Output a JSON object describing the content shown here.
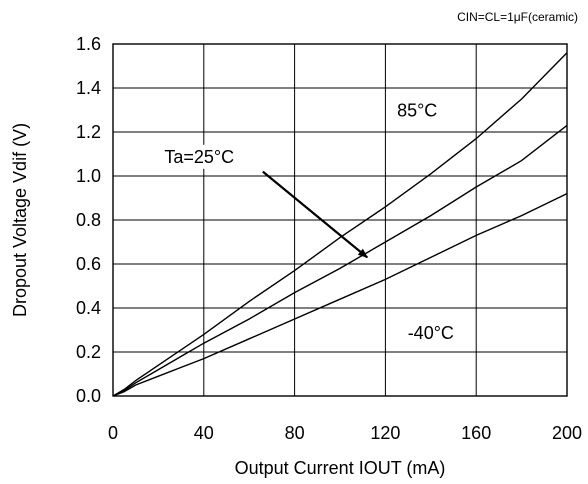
{
  "chart_data": {
    "type": "line",
    "title": "",
    "condition_note": "CIN=CL=1μF(ceramic)",
    "xlabel": "Output Current  IOUT  (mA)",
    "ylabel": "Dropout Voltage  Vdif  (V)",
    "xlim": [
      0,
      200
    ],
    "ylim": [
      0,
      1.6
    ],
    "x_ticks": [
      "0",
      "40",
      "80",
      "120",
      "160",
      "200"
    ],
    "y_ticks": [
      "0.0",
      "0.2",
      "0.4",
      "0.6",
      "0.8",
      "1.0",
      "1.2",
      "1.4",
      "1.6"
    ],
    "grid": true,
    "series": [
      {
        "name": "85°C",
        "x": [
          0,
          5,
          10,
          20,
          30,
          40,
          60,
          80,
          100,
          120,
          140,
          160,
          180,
          200
        ],
        "y": [
          0,
          0.03,
          0.07,
          0.14,
          0.21,
          0.28,
          0.43,
          0.57,
          0.72,
          0.86,
          1.01,
          1.17,
          1.35,
          1.56
        ]
      },
      {
        "name": "Ta=25°C",
        "x": [
          0,
          5,
          10,
          20,
          30,
          40,
          60,
          80,
          100,
          120,
          140,
          160,
          180,
          200
        ],
        "y": [
          0,
          0.025,
          0.06,
          0.12,
          0.18,
          0.24,
          0.35,
          0.47,
          0.58,
          0.7,
          0.82,
          0.95,
          1.07,
          1.23
        ]
      },
      {
        "name": "-40°C",
        "x": [
          0,
          5,
          10,
          20,
          30,
          40,
          60,
          80,
          100,
          120,
          140,
          160,
          180,
          200
        ],
        "y": [
          0,
          0.02,
          0.05,
          0.09,
          0.13,
          0.17,
          0.26,
          0.35,
          0.44,
          0.53,
          0.63,
          0.73,
          0.82,
          0.92
        ]
      }
    ],
    "annotations": [
      {
        "text": "85°C",
        "x": 134,
        "y": 1.27
      },
      {
        "text": "Ta=25°C",
        "x": 38,
        "y": 1.06
      },
      {
        "text": "-40°C",
        "x": 140,
        "y": 0.26
      }
    ],
    "arrow": {
      "from": [
        66,
        1.02
      ],
      "to": [
        112,
        0.63
      ]
    }
  }
}
